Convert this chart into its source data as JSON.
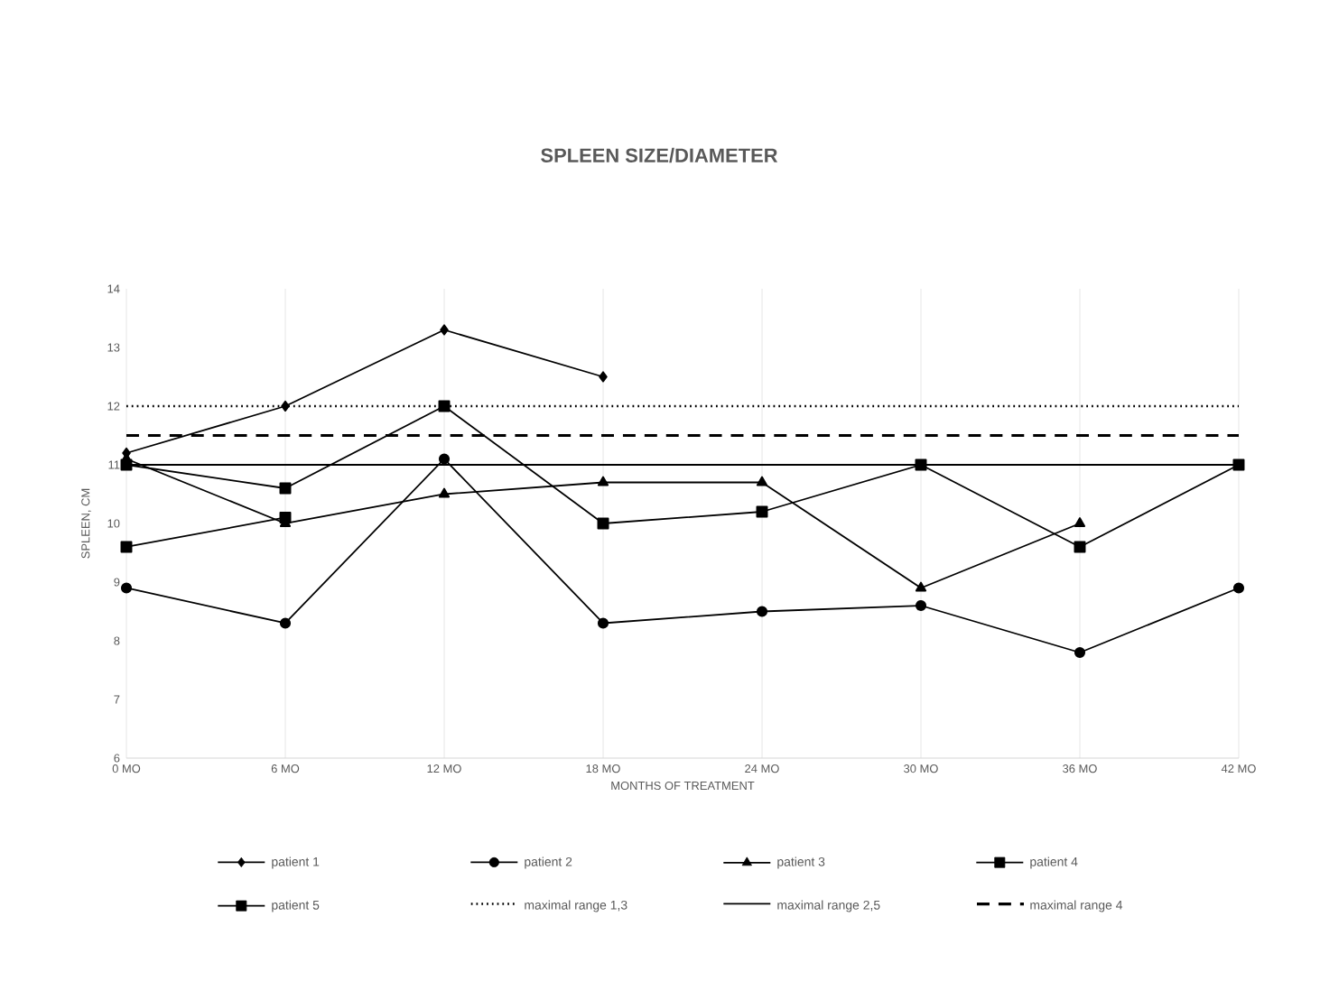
{
  "chart_data": {
    "type": "line",
    "title": "SPLEEN SIZE/DIAMETER",
    "xlabel": "MONTHS OF TREATMENT",
    "ylabel": "SPLEEN, CM",
    "categories": [
      "0 MO",
      "6 MO",
      "12 MO",
      "18 MO",
      "24 MO",
      "30 MO",
      "36 MO",
      "42 MO"
    ],
    "ylim": [
      6,
      14
    ],
    "yticks": [
      6,
      7,
      8,
      9,
      10,
      11,
      12,
      13,
      14
    ],
    "grid": "x",
    "legend": "bottom",
    "series": [
      {
        "name": "patient 1",
        "color": "#000000",
        "marker": "diamond",
        "line_style": "solid",
        "values": [
          11.2,
          12.0,
          13.3,
          12.5,
          null,
          null,
          null,
          null
        ]
      },
      {
        "name": "patient 2",
        "color": "#000000",
        "marker": "circle",
        "line_style": "solid",
        "values": [
          8.9,
          8.3,
          11.1,
          8.3,
          8.5,
          8.6,
          7.8,
          8.9
        ]
      },
      {
        "name": "patient 3",
        "color": "#000000",
        "marker": "triangle",
        "line_style": "solid",
        "values": [
          11.1,
          10.0,
          10.5,
          10.7,
          10.7,
          8.9,
          10.0,
          null
        ]
      },
      {
        "name": "patient 4",
        "color": "#000000",
        "marker": "square",
        "line_style": "solid",
        "values": [
          11.0,
          10.6,
          12.0,
          10.0,
          10.2,
          11.0,
          9.6,
          11.0
        ]
      },
      {
        "name": "patient 5",
        "color": "#000000",
        "marker": "square",
        "line_style": "solid",
        "values": [
          9.6,
          10.1,
          null,
          null,
          null,
          null,
          null,
          null
        ]
      },
      {
        "name": "maximal range 1,3",
        "color": "#000000",
        "marker": "none",
        "line_style": "dotted",
        "values": [
          12,
          12,
          12,
          12,
          12,
          12,
          12,
          12
        ]
      },
      {
        "name": "maximal range 2,5",
        "color": "#000000",
        "marker": "none",
        "line_style": "solid",
        "values": [
          11,
          11,
          11,
          11,
          11,
          11,
          11,
          11
        ]
      },
      {
        "name": "maximal range 4",
        "color": "#000000",
        "marker": "none",
        "line_style": "dashed",
        "values": [
          11.5,
          11.5,
          11.5,
          11.5,
          11.5,
          11.5,
          11.5,
          11.5
        ]
      }
    ]
  }
}
